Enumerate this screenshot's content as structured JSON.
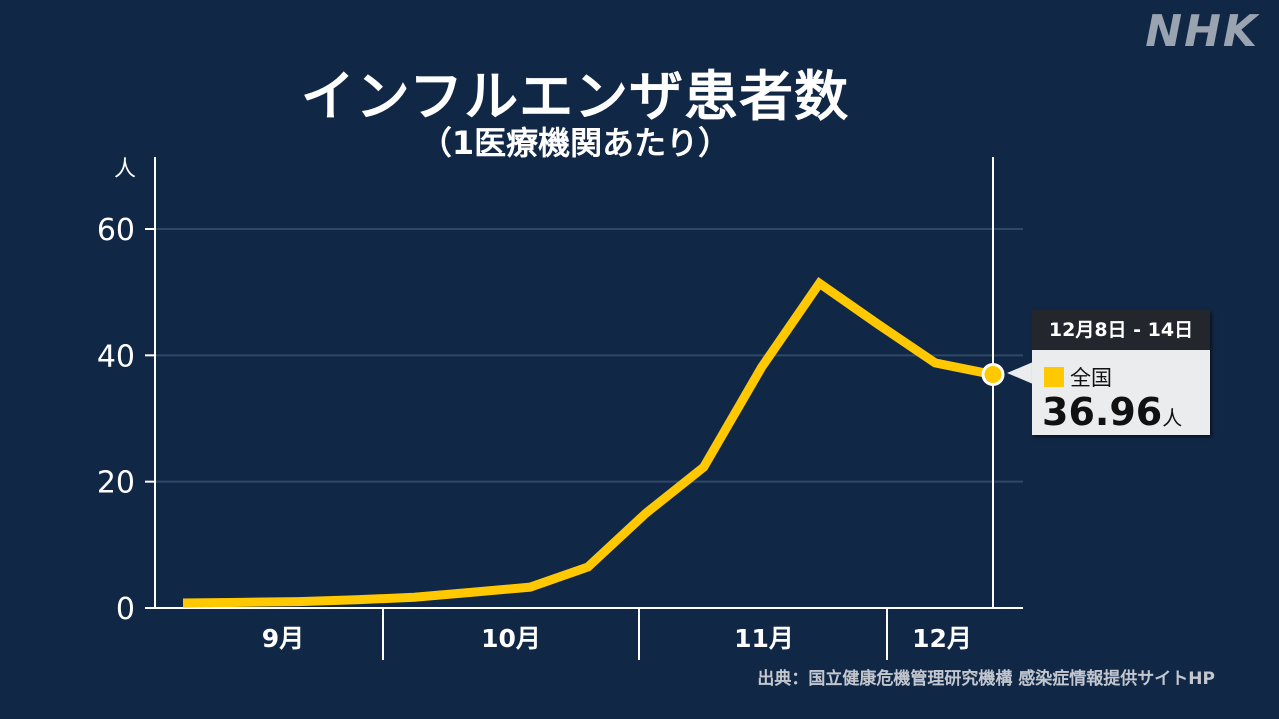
{
  "logo": "NHK",
  "source": "出典：国立健康危機管理研究機構 感染症情報提供サイトHP",
  "tooltip": {
    "period": "12月8日 - 14日",
    "series": "全国",
    "value": "36.96",
    "unit": "人"
  },
  "colors": {
    "line": "#ffc800",
    "bg": "#112746"
  },
  "chart_data": {
    "type": "line",
    "title": "インフルエンザ患者数",
    "subtitle": "（1医療機関あたり）",
    "ylabel": "人",
    "ylim": [
      0,
      60
    ],
    "yticks": [
      "0",
      "20",
      "40",
      "60"
    ],
    "month_labels": [
      "9月",
      "10月",
      "11月",
      "12月"
    ],
    "series": [
      {
        "name": "全国",
        "values": [
          0.8,
          0.9,
          1.0,
          1.3,
          1.7,
          2.5,
          3.3,
          6.5,
          15,
          22.3,
          38.1,
          51.4,
          45,
          38.8,
          36.96
        ]
      }
    ]
  }
}
